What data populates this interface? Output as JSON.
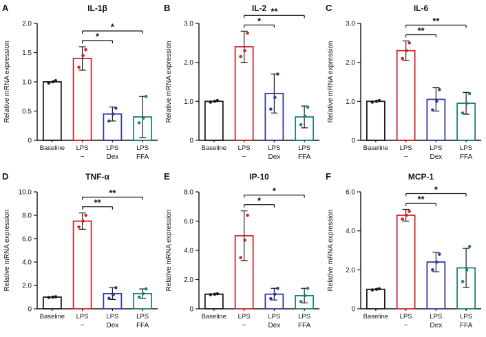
{
  "figure": {
    "background": "#ffffff",
    "bar_colors": [
      "#1a1a1a",
      "#cc2529",
      "#2f3c9e",
      "#1b8276"
    ],
    "error_color": "#1a1a1a",
    "text_color": "#111111"
  },
  "chart_data": [
    {
      "type": "bar",
      "panel": "A",
      "title": "IL-1β",
      "ylabel": "Relative mRNA expression",
      "ylim": [
        0,
        2.0
      ],
      "yticks": [
        0,
        0.5,
        1.0,
        1.5,
        2.0
      ],
      "ytick_labels": [
        "0",
        "0.5",
        "1.0",
        "1.5",
        "2.0"
      ],
      "categories": [
        "Baseline",
        "LPS",
        "LPS",
        "LPS"
      ],
      "sub_labels": [
        "",
        "−",
        "Dex",
        "FFA"
      ],
      "values": [
        1.0,
        1.4,
        0.45,
        0.4
      ],
      "errors": [
        0,
        0.2,
        0.12,
        0.35
      ],
      "points": [
        [
          0.98,
          1.0,
          1.02
        ],
        [
          1.25,
          1.45,
          1.55
        ],
        [
          0.33,
          0.45,
          0.55
        ],
        [
          0.3,
          0.38,
          0.75
        ]
      ],
      "significance": [
        {
          "from": 1,
          "to": 2,
          "label": "*",
          "level": 0
        },
        {
          "from": 1,
          "to": 3,
          "label": "*",
          "level": 1
        }
      ]
    },
    {
      "type": "bar",
      "panel": "B",
      "title": "IL-2",
      "ylabel": "Relative mRNA expression",
      "ylim": [
        0,
        3.0
      ],
      "yticks": [
        0,
        1.0,
        2.0,
        3.0
      ],
      "ytick_labels": [
        "0",
        "1.0",
        "2.0",
        "3.0"
      ],
      "categories": [
        "Baseline",
        "LPS",
        "LPS",
        "LPS"
      ],
      "sub_labels": [
        "",
        "−",
        "Dex",
        "FFA"
      ],
      "values": [
        1.0,
        2.4,
        1.2,
        0.6
      ],
      "errors": [
        0,
        0.4,
        0.5,
        0.28
      ],
      "points": [
        [
          0.98,
          1.0,
          1.02
        ],
        [
          2.15,
          2.3,
          2.75
        ],
        [
          0.8,
          1.1,
          1.7
        ],
        [
          0.4,
          0.62,
          0.85
        ]
      ],
      "significance": [
        {
          "from": 1,
          "to": 2,
          "label": "*",
          "level": 0
        },
        {
          "from": 1,
          "to": 3,
          "label": "**",
          "level": 1
        }
      ]
    },
    {
      "type": "bar",
      "panel": "C",
      "title": "IL-6",
      "ylabel": "Relative mRNA expression",
      "ylim": [
        0,
        3.0
      ],
      "yticks": [
        0,
        1.0,
        2.0,
        3.0
      ],
      "ytick_labels": [
        "0",
        "1.0",
        "2.0",
        "3.0"
      ],
      "categories": [
        "Baseline",
        "LPS",
        "LPS",
        "LPS"
      ],
      "sub_labels": [
        "",
        "−",
        "Dex",
        "FFA"
      ],
      "values": [
        1.0,
        2.3,
        1.05,
        0.95
      ],
      "errors": [
        0,
        0.25,
        0.3,
        0.28
      ],
      "points": [
        [
          0.98,
          1.0,
          1.02
        ],
        [
          2.1,
          2.3,
          2.5
        ],
        [
          0.78,
          1.0,
          1.3
        ],
        [
          0.7,
          0.95,
          1.2
        ]
      ],
      "significance": [
        {
          "from": 1,
          "to": 2,
          "label": "**",
          "level": 0
        },
        {
          "from": 1,
          "to": 3,
          "label": "**",
          "level": 1
        }
      ]
    },
    {
      "type": "bar",
      "panel": "D",
      "title": "TNF-α",
      "ylabel": "Relative mRNA expression",
      "ylim": [
        0,
        10.0
      ],
      "yticks": [
        0,
        2.0,
        4.0,
        6.0,
        8.0,
        10.0
      ],
      "ytick_labels": [
        "0",
        "2.0",
        "4.0",
        "6.0",
        "8.0",
        "10.0"
      ],
      "categories": [
        "Baseline",
        "LPS",
        "LPS",
        "LPS"
      ],
      "sub_labels": [
        "",
        "−",
        "Dex",
        "FFA"
      ],
      "values": [
        1.0,
        7.5,
        1.3,
        1.3
      ],
      "errors": [
        0,
        0.7,
        0.5,
        0.4
      ],
      "points": [
        [
          0.97,
          1.0,
          1.03
        ],
        [
          7.0,
          7.5,
          8.0
        ],
        [
          0.9,
          1.2,
          1.8
        ],
        [
          1.0,
          1.3,
          1.7
        ]
      ],
      "significance": [
        {
          "from": 1,
          "to": 2,
          "label": "**",
          "level": 0
        },
        {
          "from": 1,
          "to": 3,
          "label": "**",
          "level": 1
        }
      ]
    },
    {
      "type": "bar",
      "panel": "E",
      "title": "IP-10",
      "ylabel": "Relative mRNA expression",
      "ylim": [
        0,
        8.0
      ],
      "yticks": [
        0,
        2.0,
        4.0,
        6.0,
        8.0
      ],
      "ytick_labels": [
        "0",
        "2.0",
        "4.0",
        "6.0",
        "8.0"
      ],
      "categories": [
        "Baseline",
        "LPS",
        "LPS",
        "LPS"
      ],
      "sub_labels": [
        "",
        "−",
        "Dex",
        "FFA"
      ],
      "values": [
        1.0,
        5.0,
        1.0,
        0.9
      ],
      "errors": [
        0,
        1.7,
        0.4,
        0.5
      ],
      "points": [
        [
          0.97,
          1.0,
          1.03
        ],
        [
          3.5,
          4.7,
          6.4
        ],
        [
          0.7,
          1.0,
          1.4
        ],
        [
          0.5,
          0.9,
          1.4
        ]
      ],
      "significance": [
        {
          "from": 1,
          "to": 2,
          "label": "*",
          "level": 0
        },
        {
          "from": 1,
          "to": 3,
          "label": "*",
          "level": 1
        }
      ]
    },
    {
      "type": "bar",
      "panel": "F",
      "title": "MCP-1",
      "ylabel": "Relative mRNA expression",
      "ylim": [
        0,
        6.0
      ],
      "yticks": [
        0,
        2.0,
        4.0,
        6.0
      ],
      "ytick_labels": [
        "0",
        "2.0",
        "4.0",
        "6.0"
      ],
      "categories": [
        "Baseline",
        "LPS",
        "LPS",
        "LPS"
      ],
      "sub_labels": [
        "",
        "−",
        "Dex",
        "FFA"
      ],
      "values": [
        1.0,
        4.8,
        2.4,
        2.1
      ],
      "errors": [
        0,
        0.3,
        0.5,
        1.0
      ],
      "points": [
        [
          0.97,
          1.0,
          1.03
        ],
        [
          4.6,
          4.8,
          5.0
        ],
        [
          2.0,
          2.4,
          2.8
        ],
        [
          1.4,
          2.0,
          3.2
        ]
      ],
      "significance": [
        {
          "from": 1,
          "to": 2,
          "label": "**",
          "level": 0
        },
        {
          "from": 1,
          "to": 3,
          "label": "*",
          "level": 1
        }
      ]
    }
  ]
}
